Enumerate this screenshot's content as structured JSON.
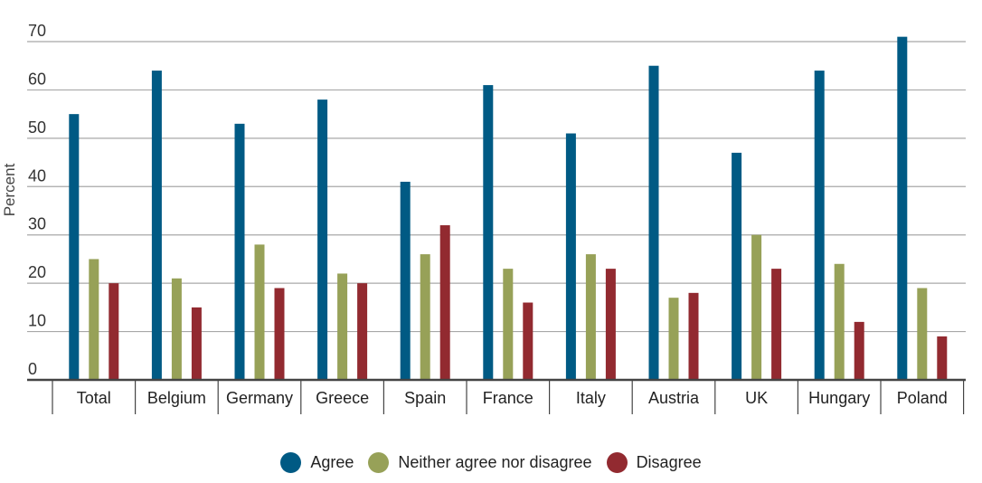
{
  "chart_data": {
    "type": "bar",
    "title": "",
    "xlabel": "",
    "ylabel": "Percent",
    "ylim": [
      0,
      70
    ],
    "yticks": [
      0,
      10,
      20,
      30,
      40,
      50,
      60,
      70
    ],
    "grid": true,
    "legend_position": "bottom",
    "categories": [
      "Total",
      "Belgium",
      "Germany",
      "Greece",
      "Spain",
      "France",
      "Italy",
      "Austria",
      "UK",
      "Hungary",
      "Poland"
    ],
    "series": [
      {
        "name": "Agree",
        "color": "#005a84",
        "values": [
          55,
          64,
          53,
          58,
          41,
          61,
          51,
          65,
          47,
          64,
          71
        ]
      },
      {
        "name": "Neither agree nor disagree",
        "color": "#97a158",
        "values": [
          25,
          21,
          28,
          22,
          26,
          23,
          26,
          17,
          30,
          24,
          19
        ]
      },
      {
        "name": "Disagree",
        "color": "#922a30",
        "values": [
          20,
          15,
          19,
          20,
          32,
          16,
          23,
          18,
          23,
          12,
          9
        ]
      }
    ]
  }
}
